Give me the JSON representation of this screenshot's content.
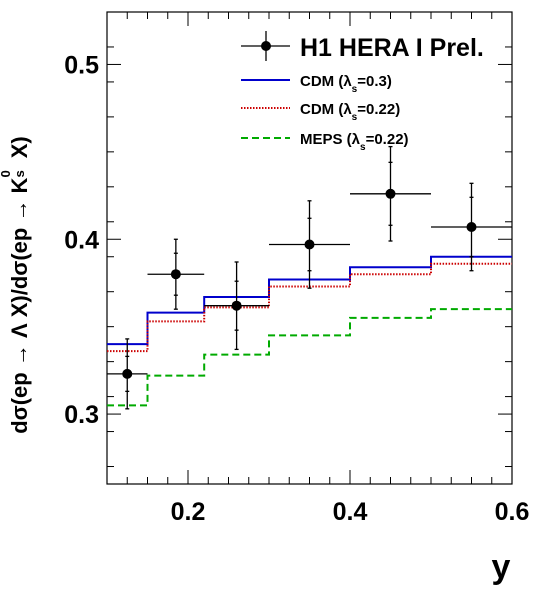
{
  "chart_data": {
    "type": "line",
    "ylabel": "dσ(ep → Λ X)/dσ(ep → K⁰ₛ X)",
    "ylabel_parts": {
      "prefix": "dσ(ep → Λ X)/dσ(ep → K",
      "sup": "0",
      "sub": "s",
      "suffix": " X)"
    },
    "xlabel": "y",
    "xlim": [
      0.1,
      0.6
    ],
    "ylim": [
      0.26,
      0.53
    ],
    "x_ticks": [
      "0.2",
      "0.4",
      "0.6"
    ],
    "x_tick_values": [
      0.2,
      0.4,
      0.6
    ],
    "y_ticks": [
      "0.3",
      "0.4",
      "0.5"
    ],
    "y_tick_values": [
      0.3,
      0.4,
      0.5
    ],
    "legend_position": "top-right",
    "legend": [
      {
        "label": "H1 HERA I Prel.",
        "kind": "data"
      },
      {
        "label_prefix": "CDM (λ",
        "label_sub": "s",
        "label_suffix": "=0.3)",
        "kind": "line",
        "color": "#0000cc",
        "style": "solid"
      },
      {
        "label_prefix": "CDM (λ",
        "label_sub": "s",
        "label_suffix": "=0.22)",
        "kind": "line",
        "color": "#cc0000",
        "style": "dotted"
      },
      {
        "label_prefix": "MEPS (λ",
        "label_sub": "s",
        "label_suffix": "=0.22)",
        "kind": "line",
        "color": "#00aa00",
        "style": "dashed"
      }
    ],
    "data_points": [
      {
        "x": 0.125,
        "y": 0.323,
        "xlow": 0.1,
        "xhigh": 0.15,
        "stat": 0.01,
        "tot": 0.02
      },
      {
        "x": 0.185,
        "y": 0.38,
        "xlow": 0.15,
        "xhigh": 0.22,
        "stat": 0.012,
        "tot": 0.02
      },
      {
        "x": 0.26,
        "y": 0.362,
        "xlow": 0.22,
        "xhigh": 0.3,
        "stat": 0.014,
        "tot": 0.025
      },
      {
        "x": 0.35,
        "y": 0.397,
        "xlow": 0.3,
        "xhigh": 0.4,
        "stat": 0.015,
        "tot": 0.025
      },
      {
        "x": 0.45,
        "y": 0.426,
        "xlow": 0.4,
        "xhigh": 0.5,
        "stat": 0.018,
        "tot": 0.027
      },
      {
        "x": 0.55,
        "y": 0.407,
        "xlow": 0.5,
        "xhigh": 0.6,
        "stat": 0.017,
        "tot": 0.025
      }
    ],
    "bin_edges": [
      0.1,
      0.15,
      0.22,
      0.3,
      0.4,
      0.5,
      0.6
    ],
    "series": [
      {
        "label_index": 1,
        "color": "#0000cc",
        "style": "solid",
        "values": [
          0.34,
          0.358,
          0.367,
          0.377,
          0.384,
          0.39
        ]
      },
      {
        "label_index": 2,
        "color": "#cc0000",
        "style": "dotted",
        "values": [
          0.336,
          0.353,
          0.361,
          0.373,
          0.38,
          0.386
        ]
      },
      {
        "label_index": 3,
        "color": "#00aa00",
        "style": "dashed",
        "values": [
          0.305,
          0.322,
          0.334,
          0.345,
          0.355,
          0.36
        ]
      }
    ]
  }
}
